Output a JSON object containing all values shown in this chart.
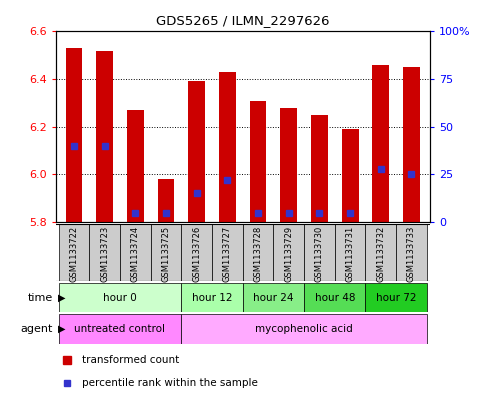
{
  "title": "GDS5265 / ILMN_2297626",
  "samples": [
    "GSM1133722",
    "GSM1133723",
    "GSM1133724",
    "GSM1133725",
    "GSM1133726",
    "GSM1133727",
    "GSM1133728",
    "GSM1133729",
    "GSM1133730",
    "GSM1133731",
    "GSM1133732",
    "GSM1133733"
  ],
  "transformed_counts": [
    6.53,
    6.52,
    6.27,
    5.98,
    6.39,
    6.43,
    6.31,
    6.28,
    6.25,
    6.19,
    6.46,
    6.45
  ],
  "percentile_ranks": [
    40,
    40,
    5,
    5,
    15,
    22,
    5,
    5,
    5,
    5,
    28,
    25
  ],
  "y_min": 5.8,
  "y_max": 6.6,
  "bar_bottom": 5.8,
  "bar_color": "#cc0000",
  "percentile_color": "#3333cc",
  "grid_color": "#000000",
  "background_color": "#ffffff",
  "sample_box_color": "#cccccc",
  "time_groups": [
    {
      "label": "hour 0",
      "start": 0,
      "end": 4,
      "color": "#ccffcc"
    },
    {
      "label": "hour 12",
      "start": 4,
      "end": 6,
      "color": "#aaffaa"
    },
    {
      "label": "hour 24",
      "start": 6,
      "end": 8,
      "color": "#88ee88"
    },
    {
      "label": "hour 48",
      "start": 8,
      "end": 10,
      "color": "#55dd55"
    },
    {
      "label": "hour 72",
      "start": 10,
      "end": 12,
      "color": "#22cc22"
    }
  ],
  "agent_groups": [
    {
      "label": "untreated control",
      "start": 0,
      "end": 4,
      "color": "#ff88ff"
    },
    {
      "label": "mycophenolic acid",
      "start": 4,
      "end": 12,
      "color": "#ffaaff"
    }
  ],
  "left_yticks": [
    5.8,
    6.0,
    6.2,
    6.4,
    6.6
  ],
  "right_yticks": [
    0,
    25,
    50,
    75,
    100
  ],
  "right_yticklabels": [
    "0",
    "25",
    "50",
    "75",
    "100%"
  ]
}
